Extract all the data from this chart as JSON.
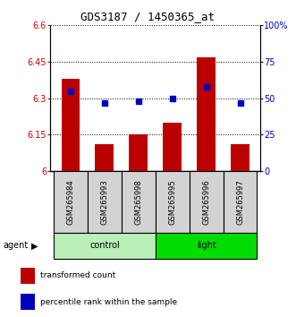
{
  "title": "GDS3187 / 1450365_at",
  "samples": [
    "GSM265984",
    "GSM265993",
    "GSM265998",
    "GSM265995",
    "GSM265996",
    "GSM265997"
  ],
  "bar_values": [
    6.38,
    6.11,
    6.15,
    6.2,
    6.47,
    6.11
  ],
  "dot_values": [
    55,
    47,
    48,
    50,
    58,
    47
  ],
  "ylim_left": [
    6.0,
    6.6
  ],
  "ylim_right": [
    0,
    100
  ],
  "yticks_left": [
    6.0,
    6.15,
    6.3,
    6.45,
    6.6
  ],
  "ytick_labels_left": [
    "6",
    "6.15",
    "6.3",
    "6.45",
    "6.6"
  ],
  "yticks_right": [
    0,
    25,
    50,
    75,
    100
  ],
  "ytick_labels_right": [
    "0",
    "25",
    "50",
    "75",
    "100%"
  ],
  "bar_color": "#bb0000",
  "dot_color": "#0000bb",
  "bar_width": 0.55,
  "bar_bottom": 6.0,
  "groups": [
    {
      "label": "control",
      "indices": [
        0,
        1,
        2
      ],
      "color": "#b8f0b8"
    },
    {
      "label": "light",
      "indices": [
        3,
        4,
        5
      ],
      "color": "#00dd00"
    }
  ],
  "agent_label": "agent",
  "legend_bar_label": "transformed count",
  "legend_dot_label": "percentile rank within the sample",
  "title_fontsize": 9,
  "tick_fontsize": 7,
  "sample_fontsize": 6,
  "group_fontsize": 7,
  "legend_fontsize": 6.5
}
